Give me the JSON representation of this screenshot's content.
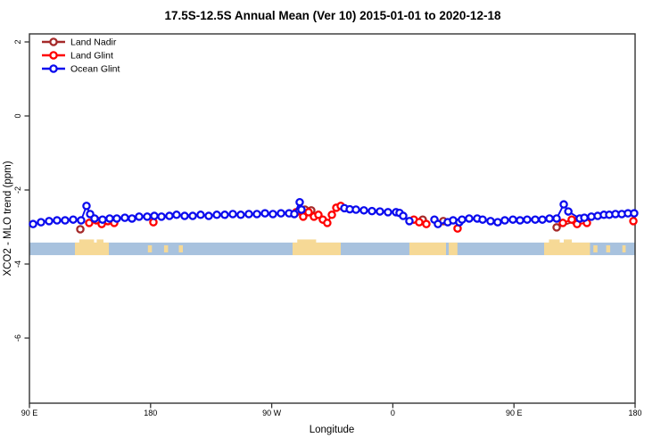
{
  "title": "17.5S-12.5S Annual Mean (Ver 10)   2015-01-01 to 2020-12-18",
  "chart_data": {
    "type": "line",
    "title": "17.5S-12.5S Annual Mean (Ver 10)   2015-01-01 to 2020-12-18",
    "xlabel": "Longitude",
    "ylabel": "XCO2 - MLO trend (ppm)",
    "x_axis": {
      "note": "axis spans 450 degrees of longitude starting at 90E wrapping eastward to 180",
      "range_deg": [
        0,
        450
      ],
      "tick_positions_deg": [
        0,
        90,
        180,
        270,
        360,
        450
      ],
      "tick_labels": [
        "90 E",
        "180",
        "90 W",
        "0",
        "90 E",
        "180"
      ]
    },
    "y_axis": {
      "range": [
        -7.8,
        2.2
      ],
      "tick_values": [
        2,
        0,
        -2,
        -4,
        -6
      ],
      "tick_labels": [
        "2",
        "0",
        "-2",
        "-4",
        "-6"
      ]
    },
    "grid": false,
    "legend_position": "top-left-inside",
    "series": [
      {
        "name": "Land Nadir",
        "color": "#A52A2A",
        "points": [
          [
            37.8,
            -3.06
          ],
          [
            204.7,
            -2.53
          ],
          [
            209.4,
            -2.55
          ],
          [
            292.2,
            -2.8
          ],
          [
            307.5,
            -2.84
          ],
          [
            391.7,
            -3.01
          ],
          [
            405.6,
            -2.84
          ]
        ]
      },
      {
        "name": "Land Glint",
        "color": "#FF0000",
        "points": [
          [
            44.4,
            -2.89
          ],
          [
            49.7,
            -2.82
          ],
          [
            53.7,
            -2.92
          ],
          [
            58.3,
            -2.84
          ],
          [
            63.0,
            -2.89
          ],
          [
            92.1,
            -2.87
          ],
          [
            198.2,
            -2.6
          ],
          [
            203.4,
            -2.72
          ],
          [
            207.4,
            -2.6
          ],
          [
            211.4,
            -2.72
          ],
          [
            214.7,
            -2.67
          ],
          [
            218.0,
            -2.8
          ],
          [
            221.3,
            -2.89
          ],
          [
            224.7,
            -2.67
          ],
          [
            228.0,
            -2.48
          ],
          [
            231.3,
            -2.43
          ],
          [
            285.6,
            -2.8
          ],
          [
            289.6,
            -2.87
          ],
          [
            294.9,
            -2.92
          ],
          [
            318.1,
            -3.04
          ],
          [
            396.3,
            -2.89
          ],
          [
            402.9,
            -2.8
          ],
          [
            406.9,
            -2.92
          ],
          [
            414.2,
            -2.89
          ],
          [
            448.7,
            -2.84
          ]
        ]
      },
      {
        "name": "Ocean Glint",
        "color": "#0B0BEE",
        "points": [
          [
            2.7,
            -2.92
          ],
          [
            8.6,
            -2.87
          ],
          [
            14.6,
            -2.84
          ],
          [
            20.5,
            -2.82
          ],
          [
            26.5,
            -2.82
          ],
          [
            32.5,
            -2.8
          ],
          [
            38.4,
            -2.82
          ],
          [
            42.4,
            -2.43
          ],
          [
            45.1,
            -2.65
          ],
          [
            48.4,
            -2.77
          ],
          [
            54.3,
            -2.8
          ],
          [
            59.6,
            -2.77
          ],
          [
            64.9,
            -2.77
          ],
          [
            70.9,
            -2.75
          ],
          [
            76.2,
            -2.77
          ],
          [
            81.5,
            -2.72
          ],
          [
            87.5,
            -2.72
          ],
          [
            92.8,
            -2.7
          ],
          [
            98.1,
            -2.72
          ],
          [
            104.0,
            -2.7
          ],
          [
            109.3,
            -2.67
          ],
          [
            115.3,
            -2.7
          ],
          [
            121.3,
            -2.7
          ],
          [
            127.2,
            -2.67
          ],
          [
            133.2,
            -2.7
          ],
          [
            139.2,
            -2.67
          ],
          [
            145.1,
            -2.67
          ],
          [
            151.1,
            -2.65
          ],
          [
            157.0,
            -2.67
          ],
          [
            163.0,
            -2.65
          ],
          [
            169.0,
            -2.65
          ],
          [
            175.0,
            -2.63
          ],
          [
            180.9,
            -2.65
          ],
          [
            186.9,
            -2.63
          ],
          [
            192.9,
            -2.63
          ],
          [
            196.8,
            -2.65
          ],
          [
            200.8,
            -2.33
          ],
          [
            202.1,
            -2.53
          ],
          [
            234.0,
            -2.49
          ],
          [
            238.0,
            -2.52
          ],
          [
            242.6,
            -2.53
          ],
          [
            248.5,
            -2.55
          ],
          [
            254.5,
            -2.57
          ],
          [
            260.4,
            -2.58
          ],
          [
            266.4,
            -2.6
          ],
          [
            272.4,
            -2.6
          ],
          [
            275.0,
            -2.62
          ],
          [
            277.7,
            -2.7
          ],
          [
            282.3,
            -2.84
          ],
          [
            300.9,
            -2.8
          ],
          [
            303.5,
            -2.92
          ],
          [
            310.8,
            -2.87
          ],
          [
            314.8,
            -2.82
          ],
          [
            319.4,
            -2.87
          ],
          [
            321.4,
            -2.8
          ],
          [
            326.7,
            -2.77
          ],
          [
            332.7,
            -2.77
          ],
          [
            336.7,
            -2.8
          ],
          [
            342.6,
            -2.84
          ],
          [
            347.9,
            -2.87
          ],
          [
            353.2,
            -2.82
          ],
          [
            359.2,
            -2.8
          ],
          [
            364.5,
            -2.82
          ],
          [
            369.8,
            -2.8
          ],
          [
            375.8,
            -2.8
          ],
          [
            381.1,
            -2.8
          ],
          [
            386.4,
            -2.77
          ],
          [
            391.7,
            -2.77
          ],
          [
            397.0,
            -2.39
          ],
          [
            400.4,
            -2.58
          ],
          [
            408.9,
            -2.77
          ],
          [
            412.3,
            -2.75
          ],
          [
            417.5,
            -2.72
          ],
          [
            422.2,
            -2.7
          ],
          [
            426.8,
            -2.67
          ],
          [
            430.8,
            -2.67
          ],
          [
            435.4,
            -2.65
          ],
          [
            440.1,
            -2.65
          ],
          [
            444.7,
            -2.63
          ],
          [
            449.3,
            -2.63
          ]
        ]
      }
    ],
    "map_strip": {
      "description": "land/ocean strip for the 17.5S-12.5S latitude band",
      "ocean_color": "#A8C2DE",
      "land_color": "#F6D996",
      "y_top_ppm": -3.42,
      "y_bottom_ppm": -3.76,
      "land_segments_deg": [
        [
          33.8,
          59.0
        ],
        [
          88,
          91
        ],
        [
          100,
          103
        ],
        [
          111,
          114
        ],
        [
          195.5,
          231.3
        ],
        [
          282.3,
          309.5
        ],
        [
          311.5,
          318.0
        ],
        [
          382.4,
          416.5
        ],
        [
          419,
          422
        ],
        [
          428.5,
          431.5
        ],
        [
          440.5,
          443
        ]
      ],
      "land_bumps_deg": [
        [
          37,
          48
        ],
        [
          50,
          55
        ],
        [
          199,
          213
        ],
        [
          386,
          394
        ],
        [
          397,
          403
        ]
      ]
    }
  }
}
